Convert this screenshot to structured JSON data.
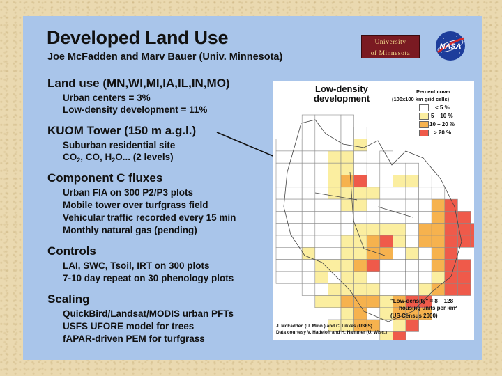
{
  "title": "Developed Land Use",
  "authors": "Joe McFadden and Marv Bauer (Univ. Minnesota)",
  "logos": {
    "university_line1": "University",
    "university_line2": "of Minnesota",
    "nasa": "NASA"
  },
  "sections": [
    {
      "heading": "Land use (MN,WI,MI,IA,IL,IN,MO)",
      "bullets": [
        "Urban centers = 3%",
        "Low-density development = 11%"
      ]
    },
    {
      "heading": "KUOM Tower (150 m a.g.l.)",
      "bullets": [
        "Suburban residential site"
      ]
    },
    {
      "heading": "Component C fluxes",
      "bullets": [
        "Urban FIA on 300 P2/P3 plots",
        "Mobile tower over turfgrass field",
        "Vehicular traffic recorded every 15 min",
        "Monthly natural gas (pending)"
      ]
    },
    {
      "heading": "Controls",
      "bullets": [
        "LAI, SWC, Tsoil, IRT on 300 plots",
        "7-10 day repeat on 30 phenology plots"
      ]
    },
    {
      "heading": "Scaling",
      "bullets": [
        "QuickBird/Landsat/MODIS urban PFTs",
        "USFS UFORE model for trees",
        "fAPAR-driven PEM for turfgrass"
      ]
    }
  ],
  "gases": {
    "co": "CO",
    "co_sub": "2",
    "mid": ", CO, H",
    "h_sub": "2",
    "end": "O... (2 levels)"
  },
  "map": {
    "title1": "Low-density",
    "title2": "development",
    "legend_title1": "Percent cover",
    "legend_title2": "(100x100 km grid cells)",
    "legend": [
      {
        "label": "<  5 %",
        "color": "#ffffff"
      },
      {
        "label": "5 – 10 %",
        "color": "#fbeea0"
      },
      {
        "label": "10 – 20 %",
        "color": "#f6b24e"
      },
      {
        "label": "> 20 %",
        "color": "#ef5a4a"
      }
    ],
    "note1": "\"Low-density\" = 8 – 128",
    "note2": "housing units per km²",
    "note3": "(US Census 2000)",
    "credit1": "J. McFadden (U. Minn.) and C. Likkes (USFS).",
    "credit2": "Data courtesy V. Hadeloff and H. Hammer (U. Wisc.)"
  }
}
